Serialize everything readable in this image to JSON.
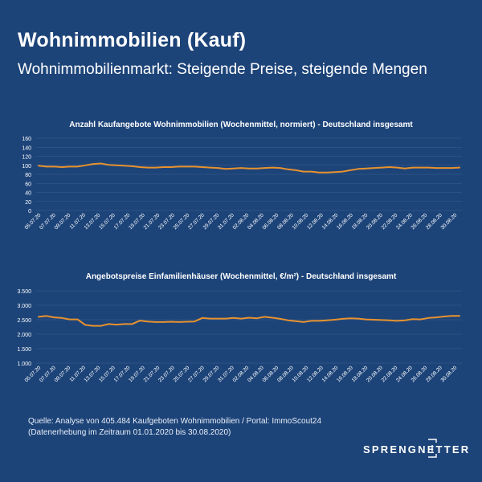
{
  "header": {
    "title": "Wohnimmobilien (Kauf)",
    "subtitle": "Wohnimmobilienmarkt: Steigende Preise, steigende Mengen"
  },
  "chart_data": [
    {
      "type": "line",
      "title": "Anzahl Kaufangebote Wohnimmobilien (Wochenmittel, normiert) - Deutschland insgesamt",
      "ylim": [
        0,
        160
      ],
      "yticks": [
        "0",
        "20",
        "40",
        "60",
        "80",
        "100",
        "120",
        "140",
        "160"
      ],
      "ytick_values": [
        0,
        20,
        40,
        60,
        80,
        100,
        120,
        140,
        160
      ],
      "xtick_labels": [
        "05.07.20",
        "07.07.20",
        "09.07.20",
        "11.07.20",
        "13.07.20",
        "15.07.20",
        "17.07.20",
        "19.07.20",
        "21.07.20",
        "23.07.20",
        "25.07.20",
        "27.07.20",
        "29.07.20",
        "31.07.20",
        "02.08.20",
        "04.08.20",
        "06.08.20",
        "08.08.20",
        "10.08.20",
        "12.08.20",
        "14.08.20",
        "16.08.20",
        "18.08.20",
        "20.08.20",
        "22.08.20",
        "24.08.20",
        "26.08.20",
        "28.08.20",
        "30.08.20"
      ],
      "series": [
        {
          "color": "#e8922e",
          "values": [
            99,
            97,
            97,
            96,
            97,
            97,
            100,
            103,
            104,
            101,
            100,
            99,
            98,
            96,
            95,
            95,
            96,
            96,
            97,
            97,
            97,
            96,
            95,
            94,
            92,
            93,
            94,
            93,
            93,
            94,
            95,
            94,
            91,
            89,
            86,
            86,
            84,
            84,
            85,
            86,
            89,
            92,
            93,
            94,
            95,
            96,
            95,
            93,
            95,
            95,
            95,
            94,
            94,
            94,
            95
          ]
        }
      ],
      "grid": true,
      "legend": "none"
    },
    {
      "type": "line",
      "title": "Angebotspreise Einfamilienhäuser (Wochenmittel, €/m²) - Deutschland insgesamt",
      "ylim": [
        1000,
        3500
      ],
      "yticks": [
        "1.000",
        "1.500",
        "2.000",
        "2.500",
        "3.000",
        "3.500"
      ],
      "ytick_values": [
        1000,
        1500,
        2000,
        2500,
        3000,
        3500
      ],
      "xtick_labels": [
        "05.07.20",
        "07.07.20",
        "09.07.20",
        "11.07.20",
        "13.07.20",
        "15.07.20",
        "17.07.20",
        "19.07.20",
        "21.07.20",
        "23.07.20",
        "25.07.20",
        "27.07.20",
        "29.07.20",
        "31.07.20",
        "02.08.20",
        "04.08.20",
        "06.08.20",
        "08.08.20",
        "10.08.20",
        "12.08.20",
        "14.08.20",
        "16.08.20",
        "18.08.20",
        "20.08.20",
        "22.08.20",
        "24.08.20",
        "26.08.20",
        "28.08.20",
        "30.08.20"
      ],
      "series": [
        {
          "color": "#e8922e",
          "values": [
            2600,
            2630,
            2580,
            2560,
            2510,
            2510,
            2320,
            2290,
            2290,
            2350,
            2330,
            2350,
            2350,
            2470,
            2440,
            2420,
            2420,
            2430,
            2420,
            2430,
            2440,
            2560,
            2540,
            2540,
            2540,
            2560,
            2540,
            2570,
            2550,
            2600,
            2570,
            2530,
            2480,
            2450,
            2420,
            2460,
            2460,
            2480,
            2500,
            2530,
            2550,
            2540,
            2510,
            2500,
            2490,
            2480,
            2460,
            2480,
            2520,
            2510,
            2560,
            2580,
            2610,
            2630,
            2630
          ]
        }
      ],
      "grid": true,
      "legend": "none"
    }
  ],
  "footnote": {
    "line1": "Quelle: Analyse von 405.484 Kaufgeboten Wohnimmobilien / Portal: ImmoScout24",
    "line2": "(Datenerhebung im Zeitraum 01.01.2020 bis 30.08.2020)"
  },
  "logo": {
    "text": "SPRENGNETTER"
  }
}
